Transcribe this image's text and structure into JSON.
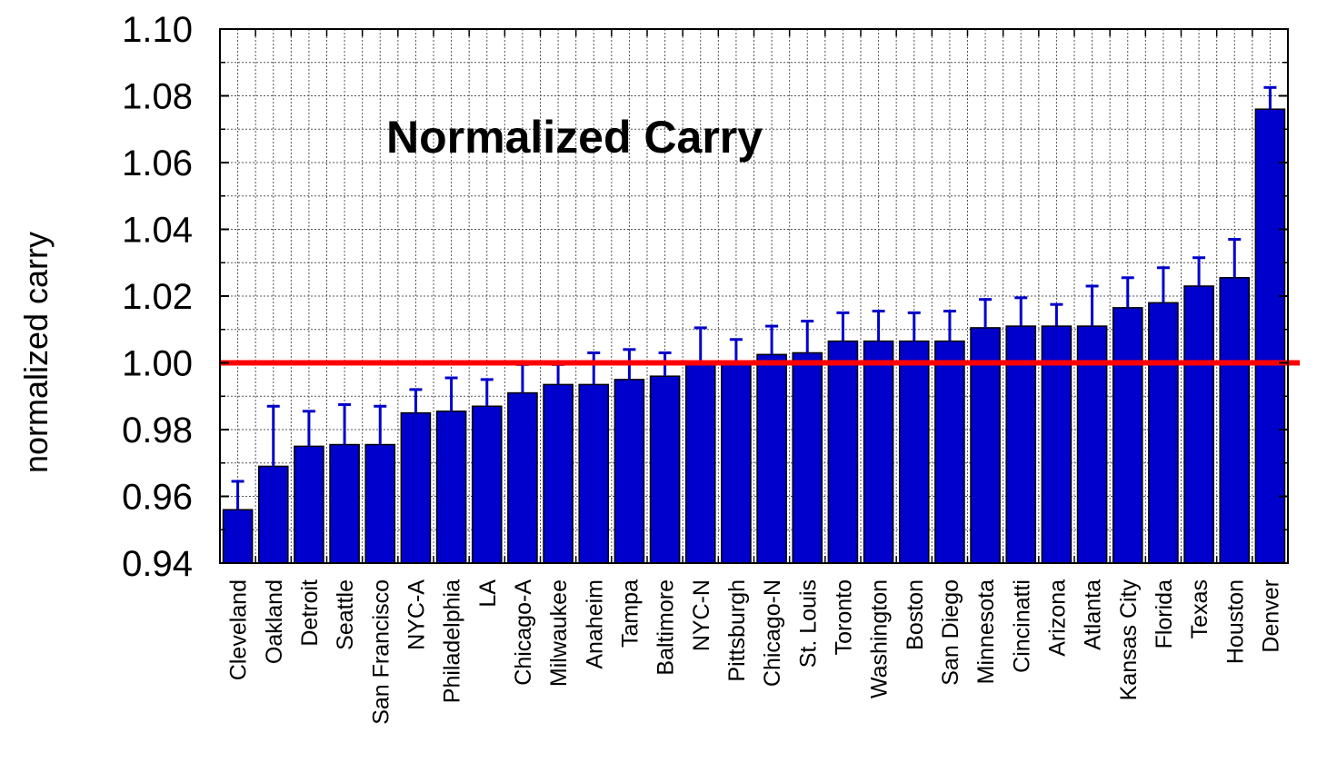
{
  "chart_data": {
    "type": "bar",
    "title": "Normalized Carry",
    "xlabel": "",
    "ylabel": "normalized carry",
    "ylim": [
      0.94,
      1.1
    ],
    "yticks": [
      "0.94",
      "0.96",
      "0.98",
      "1.00",
      "1.02",
      "1.04",
      "1.06",
      "1.08",
      "1.10"
    ],
    "grid": true,
    "reference_line": {
      "y": 1.0,
      "color": "#ff0000"
    },
    "bar_color": "#0000cc",
    "error_bar_color": "#0000cc",
    "categories": [
      "Cleveland",
      "Oakland",
      "Detroit",
      "Seattle",
      "San Francisco",
      "NYC-A",
      "Philadelphia",
      "LA",
      "Chicago-A",
      "Milwaukee",
      "Anaheim",
      "Tampa",
      "Baltimore",
      "NYC-N",
      "Pittsburgh",
      "Chicago-N",
      "St. Louis",
      "Toronto",
      "Washington",
      "Boston",
      "San Diego",
      "Minnesota",
      "Cincinatti",
      "Arizona",
      "Atlanta",
      "Kansas City",
      "Florida",
      "Texas",
      "Houston",
      "Denver"
    ],
    "values": [
      0.956,
      0.969,
      0.975,
      0.9755,
      0.9755,
      0.985,
      0.9855,
      0.987,
      0.991,
      0.9935,
      0.9935,
      0.995,
      0.996,
      0.9995,
      0.9995,
      1.0025,
      1.003,
      1.0065,
      1.0065,
      1.0065,
      1.0065,
      1.0105,
      1.011,
      1.011,
      1.011,
      1.0165,
      1.018,
      1.023,
      1.0255,
      1.076
    ],
    "error_upper": [
      0.9645,
      0.987,
      0.9855,
      0.9875,
      0.987,
      0.992,
      0.9955,
      0.995,
      0.9995,
      0.9995,
      1.003,
      1.004,
      1.003,
      1.0105,
      1.007,
      1.011,
      1.0125,
      1.015,
      1.0155,
      1.015,
      1.0155,
      1.019,
      1.0195,
      1.0175,
      1.023,
      1.0255,
      1.0285,
      1.0315,
      1.037,
      1.0825
    ]
  }
}
